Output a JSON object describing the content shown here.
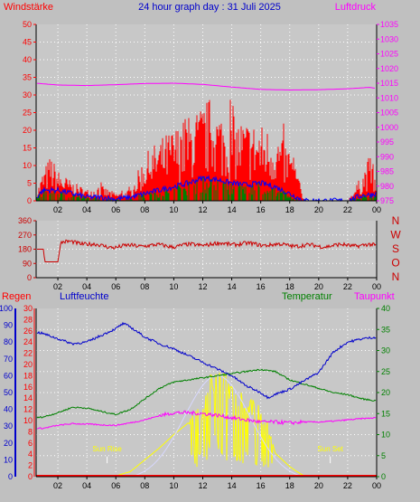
{
  "title": "24 hour graph day : 31 Juli 2025",
  "colors": {
    "background": "#c0c0c0",
    "plot": "#c8c8c8",
    "wind": "#ff0000",
    "gust": "#0000ff",
    "green": "#008000",
    "pressure": "#ff00ff",
    "direction": "#cc0000",
    "rain": "#ff0000",
    "humidity": "#0000cc",
    "temperature": "#008000",
    "dewpoint": "#ff00ff",
    "solar": "#ffff00",
    "uv": "#ffffff",
    "gridline": "#ffffff",
    "axis": "#000000"
  },
  "chart_data": [
    {
      "type": "line",
      "panel": "wind-pressure",
      "left_label": "Windstärke",
      "right_label": "Luftdruck",
      "x_ticks": [
        "02",
        "04",
        "06",
        "08",
        "10",
        "12",
        "14",
        "16",
        "18",
        "20",
        "22",
        "00"
      ],
      "x_range": [
        0.5,
        24
      ],
      "left_range": [
        0,
        50
      ],
      "left_ticks": [
        "0",
        "5",
        "10",
        "15",
        "20",
        "25",
        "30",
        "35",
        "40",
        "45",
        "50"
      ],
      "right_range": [
        975,
        1035
      ],
      "right_ticks": [
        "975",
        "980",
        "985",
        "990",
        "995",
        "1000",
        "1005",
        "1010",
        "1015",
        "1020",
        "1025",
        "1030",
        "1035"
      ],
      "series": [
        {
          "key": "pressure",
          "x": [
            0.5,
            2,
            4,
            6,
            8,
            10,
            12,
            14,
            16,
            18,
            20,
            22,
            23.5,
            24
          ],
          "y": [
            1015,
            1014.4,
            1014.2,
            1014.5,
            1014.9,
            1015,
            1014.6,
            1013.7,
            1012.9,
            1012.7,
            1012.8,
            1013.1,
            1013.6,
            1013.2
          ]
        },
        {
          "key": "wind_envelope",
          "x": [
            0.5,
            1,
            1.5,
            2,
            3,
            4,
            5,
            6,
            7,
            8,
            9,
            10,
            11,
            12,
            12.5,
            13,
            14,
            15,
            16,
            17,
            18,
            18.5,
            19,
            22,
            23,
            23.5,
            24
          ],
          "y": [
            2,
            8,
            12,
            8,
            5,
            3,
            4,
            2,
            3,
            12,
            16,
            19,
            22,
            25,
            27,
            24,
            22,
            21,
            20,
            18,
            14,
            8,
            0,
            0,
            7,
            12,
            5
          ]
        },
        {
          "key": "gust_envelope",
          "x": [
            0.5,
            1,
            2,
            3,
            4,
            5,
            6,
            7,
            8,
            9,
            10,
            11,
            12,
            13,
            14,
            15,
            16,
            17,
            18,
            18.5,
            19,
            22,
            23,
            24
          ],
          "y": [
            1,
            3,
            3,
            2,
            1,
            1,
            0.5,
            1,
            2,
            3,
            4,
            5,
            6.5,
            6,
            5,
            4.5,
            5,
            4,
            2,
            1,
            0,
            0,
            1.5,
            2
          ]
        }
      ]
    },
    {
      "type": "line",
      "panel": "wind-direction",
      "y_range": [
        0,
        360
      ],
      "y_ticks": [
        "0",
        "90",
        "180",
        "270",
        "360"
      ],
      "right_labels": [
        "N",
        "W",
        "S",
        "O",
        "N"
      ],
      "series": [
        {
          "key": "direction",
          "x": [
            0.5,
            1,
            1.1,
            2,
            2.2,
            3,
            4,
            5,
            6,
            8,
            10,
            12,
            14,
            16,
            18,
            20,
            22,
            23.5,
            24
          ],
          "y": [
            180,
            180,
            100,
            100,
            220,
            225,
            215,
            200,
            195,
            205,
            200,
            210,
            215,
            210,
            205,
            200,
            205,
            205,
            200
          ]
        }
      ]
    },
    {
      "type": "line",
      "panel": "humidity-temperature",
      "labels": [
        "Regen",
        "Luftfeuchte",
        "Temperatur",
        "Taupunkt"
      ],
      "humidity_range": [
        0,
        100
      ],
      "humidity_ticks": [
        "0",
        "10",
        "20",
        "30",
        "40",
        "50",
        "60",
        "70",
        "80",
        "90",
        "100"
      ],
      "rain_range": [
        0,
        30
      ],
      "rain_ticks": [
        "0",
        "2",
        "4",
        "6",
        "8",
        "10",
        "12",
        "14",
        "16",
        "18",
        "20",
        "22",
        "24",
        "26",
        "28",
        "30"
      ],
      "temp_range": [
        0,
        40
      ],
      "temp_ticks": [
        "0",
        "5",
        "10",
        "15",
        "20",
        "25",
        "30",
        "35",
        "40"
      ],
      "annotations": [
        {
          "text": "Sun Rise",
          "x": 5.4
        },
        {
          "text": "Sun Set",
          "x": 20.8
        }
      ],
      "series": [
        {
          "key": "humidity",
          "x": [
            0.5,
            1,
            2,
            3,
            4,
            5,
            6,
            6.5,
            7,
            8,
            9,
            10,
            11,
            12,
            13,
            14,
            15,
            16,
            16.5,
            17,
            18,
            19,
            20,
            21,
            22,
            23,
            24
          ],
          "y": [
            86,
            85,
            82,
            79,
            80,
            84,
            88,
            91,
            89,
            83,
            79,
            76,
            72,
            68,
            64,
            60,
            54,
            50,
            47,
            49,
            52,
            57,
            62,
            74,
            80,
            82,
            83
          ]
        },
        {
          "key": "temperature",
          "x": [
            0.5,
            1,
            2,
            3,
            4,
            5,
            6,
            7,
            8,
            9,
            10,
            11,
            12,
            13,
            14,
            15,
            16,
            17,
            18,
            19,
            20,
            21,
            22,
            23,
            24
          ],
          "y": [
            14,
            14.2,
            15.2,
            16.5,
            16.3,
            15.5,
            14.8,
            16,
            18.5,
            21,
            22.5,
            23,
            23.5,
            24,
            24.5,
            25,
            25.5,
            25,
            23,
            22,
            21,
            20,
            19.5,
            18.5,
            18
          ]
        },
        {
          "key": "dewpoint",
          "x": [
            0.5,
            1,
            2,
            3,
            4,
            5,
            6,
            7,
            8,
            9,
            10,
            11,
            12,
            13,
            14,
            15,
            16,
            17,
            18,
            19,
            20,
            21,
            22,
            23,
            24
          ],
          "y": [
            11.5,
            11.5,
            12.2,
            12.6,
            12.5,
            12.3,
            12.2,
            12.8,
            13.5,
            14.5,
            15.2,
            15.2,
            15,
            14.6,
            14,
            13.5,
            13,
            13,
            12.8,
            13,
            13,
            13.2,
            13.5,
            13.8,
            14
          ]
        },
        {
          "key": "solar_envelope",
          "x": [
            0.5,
            5,
            6,
            7,
            8,
            9,
            10,
            11,
            11.5,
            12,
            12.5,
            13,
            14,
            15,
            16,
            16.5,
            17,
            18,
            18.5,
            19,
            20,
            20.5,
            24
          ],
          "y": [
            0,
            0,
            0.5,
            3,
            10,
            17,
            25,
            32,
            36,
            40,
            56,
            60,
            52,
            45,
            38,
            30,
            14,
            6,
            3,
            0.5,
            0.5,
            0,
            0
          ]
        },
        {
          "key": "rain",
          "x": [
            0.5,
            24
          ],
          "y": [
            0,
            0
          ]
        }
      ]
    }
  ]
}
